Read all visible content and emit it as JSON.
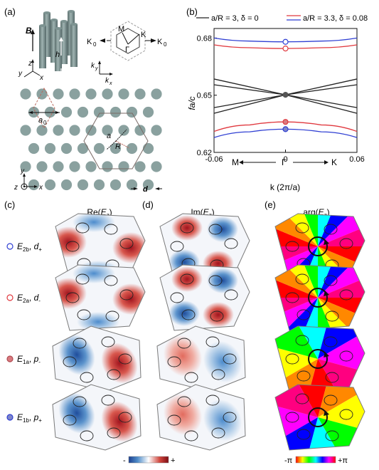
{
  "panel_labels": {
    "a": "(a)",
    "b": "(b)",
    "c": "(c)",
    "d": "(d)",
    "e": "(e)"
  },
  "panel_a": {
    "B": "B",
    "h": "h",
    "axes3d": {
      "z": "z",
      "y": "y",
      "x": "x"
    },
    "bz_labels": {
      "M": "M",
      "K": "K",
      "Gamma": "Γ",
      "K0_left": "K",
      "K0_right": "K",
      "sub0": "0"
    },
    "k_axes": {
      "ky": "k",
      "ky_sub": "y",
      "kx": "k",
      "kx_sub": "x"
    },
    "lattice_labels": {
      "a0": "a",
      "a0_sub": "0",
      "a": "a",
      "R": "R",
      "d": "d"
    },
    "axes2d": {
      "y": "y",
      "z": "z",
      "x": "x"
    },
    "colors": {
      "rod": "#8aa19f",
      "rod_dark": "#5f7574",
      "hexline": "#8c6f63",
      "dash": "#b9695c"
    }
  },
  "panel_b": {
    "legend": [
      {
        "label": "a/R = 3, δ = 0",
        "color": "#222222"
      },
      {
        "label": "a/R = 3.3, δ = 0.08",
        "color": "#e0383e",
        "color2": "#2f3fd3"
      }
    ],
    "ylabel": "fa/c",
    "xlabel": "k (2π/a)",
    "direction_labels": {
      "M": "M",
      "Gamma": "Γ",
      "K": "K"
    }
  },
  "chart_data": {
    "type": "line",
    "title": "",
    "xlabel": "k (2π/a)",
    "ylabel": "fa/c",
    "xlim": [
      -0.06,
      0.06
    ],
    "ylim": [
      0.62,
      0.685
    ],
    "xticks": [
      -0.06,
      0,
      0.06
    ],
    "xtick_labels": [
      "-0.06",
      "0",
      "0.06"
    ],
    "yticks": [
      0.62,
      0.65,
      0.68
    ],
    "ytick_labels": [
      "0.62",
      "0.65",
      "0.68"
    ],
    "series": [
      {
        "name": "a/R = 3, δ = 0",
        "color": "#222222",
        "x": [
          -0.06,
          0,
          0.06
        ],
        "y": [
          0.6585,
          0.6502,
          0.6405
        ]
      },
      {
        "name": "a/R = 3, δ = 0",
        "color": "#222222",
        "x": [
          -0.06,
          0,
          0.06
        ],
        "y": [
          0.6555,
          0.6502,
          0.6435
        ]
      },
      {
        "name": "a/R = 3, δ = 0",
        "color": "#222222",
        "x": [
          -0.06,
          0,
          0.06
        ],
        "y": [
          0.6405,
          0.6502,
          0.6585
        ]
      },
      {
        "name": "a/R = 3, δ = 0",
        "color": "#222222",
        "x": [
          -0.06,
          0,
          0.06
        ],
        "y": [
          0.6435,
          0.6502,
          0.6555
        ]
      },
      {
        "name": "a/R = 3.3, δ = 0.08",
        "color": "#2f3fd3",
        "x": [
          -0.06,
          -0.03,
          0,
          0.03,
          0.06
        ],
        "y": [
          0.68,
          0.6784,
          0.678,
          0.6784,
          0.68
        ]
      },
      {
        "name": "a/R = 3.3, δ = 0.08",
        "color": "#e0383e",
        "x": [
          -0.06,
          -0.03,
          0,
          0.03,
          0.06
        ],
        "y": [
          0.6764,
          0.6749,
          0.6745,
          0.6749,
          0.6764
        ]
      },
      {
        "name": "a/R = 3.3, δ = 0.08",
        "color": "#e0383e",
        "x": [
          -0.06,
          -0.03,
          0,
          0.03,
          0.06
        ],
        "y": [
          0.631,
          0.6344,
          0.636,
          0.6344,
          0.631
        ]
      },
      {
        "name": "a/R = 3.3, δ = 0.08",
        "color": "#2f3fd3",
        "x": [
          -0.06,
          -0.03,
          0,
          0.03,
          0.06
        ],
        "y": [
          0.6278,
          0.6308,
          0.6322,
          0.6308,
          0.6278
        ]
      }
    ],
    "markers": [
      {
        "x": 0,
        "y": 0.678,
        "stroke": "#2f3fd3",
        "fill": "#ffffff"
      },
      {
        "x": 0,
        "y": 0.6745,
        "stroke": "#e0383e",
        "fill": "#ffffff"
      },
      {
        "x": 0,
        "y": 0.6502,
        "stroke": "#555555",
        "fill": "#555555"
      },
      {
        "x": 0,
        "y": 0.636,
        "stroke": "#e0383e",
        "fill": "#d97b80"
      },
      {
        "x": 0,
        "y": 0.6322,
        "stroke": "#2f3fd3",
        "fill": "#7e86c9"
      }
    ]
  },
  "field_panels": {
    "headers": {
      "re": {
        "pre": "Re(",
        "main": "E",
        "sub": "z",
        "post": ")"
      },
      "im": {
        "pre": "Im(",
        "main": "E",
        "sub": "z",
        "post": ")"
      },
      "arg": {
        "pre": "arg(",
        "main": "E",
        "sub": "z",
        "post": ")"
      }
    },
    "modes": [
      {
        "E": "E",
        "Esub": "2b",
        "d": "d",
        "dsub": "+",
        "marker_stroke": "#2f3fd3",
        "marker_fill": "#ffffff"
      },
      {
        "E": "E",
        "Esub": "2a",
        "d": "d",
        "dsub": "-",
        "marker_stroke": "#e0383e",
        "marker_fill": "#ffffff"
      },
      {
        "E": "E",
        "Esub": "1a",
        "d": "p",
        "dsub": "-",
        "marker_stroke": "#b04a50",
        "marker_fill": "#d97b80"
      },
      {
        "E": "E",
        "Esub": "1b",
        "d": "p",
        "dsub": "+",
        "marker_stroke": "#2f3fd3",
        "marker_fill": "#7e86c9"
      }
    ],
    "colorbar_field": {
      "minus": "-",
      "plus": "+"
    },
    "colorbar_phase": {
      "minus": "-π",
      "plus": "+π"
    }
  }
}
